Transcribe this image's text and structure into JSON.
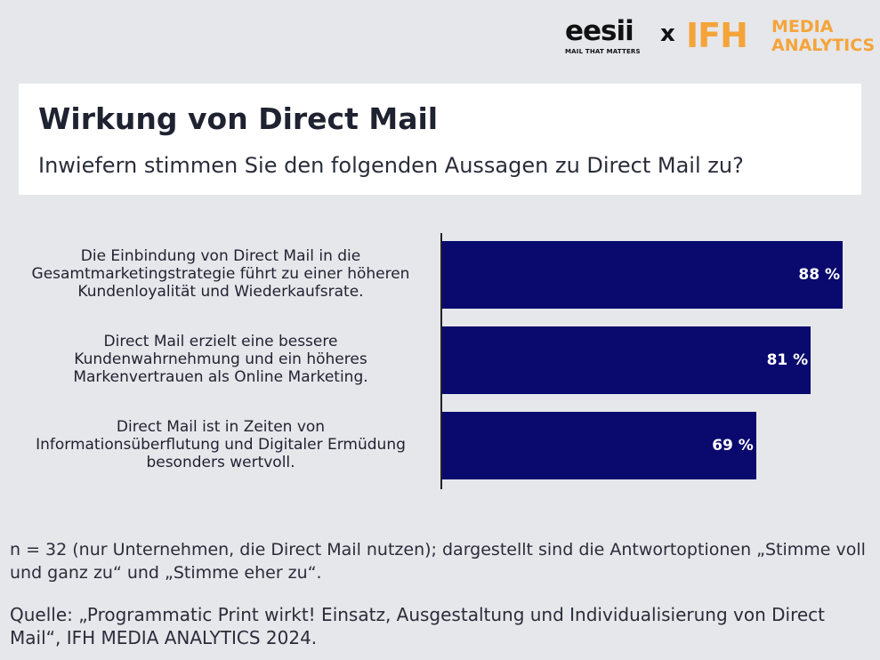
{
  "logos": {
    "eesii_word": "eesii",
    "eesii_tagline": "MAIL THAT MATTERS",
    "separator": "x",
    "ifh_word": "IFH",
    "ifh_sub_line1": "MEDIA",
    "ifh_sub_line2": "ANALYTICS",
    "brand_color": "#f5a43a"
  },
  "header": {
    "title": "Wirkung von Direct Mail",
    "subtitle": "Inwiefern stimmen Sie den folgenden Aussagen zu Direct Mail zu?"
  },
  "chart_data": {
    "type": "bar",
    "orientation": "horizontal",
    "categories": [
      "Die Einbindung von Direct Mail in die Gesamtmarketingstrategie führt zu einer höheren Kundenloyalität und Wiederkaufsrate.",
      "Direct Mail erzielt eine bessere Kundenwahrnehmung und ein höheres Markenvertrauen als Online Marketing.",
      "Direct Mail ist in Zeiten von Informationsüberflutung und Digitaler Ermüdung besonders wertvoll."
    ],
    "values": [
      88,
      81,
      69
    ],
    "value_labels": [
      "88 %",
      "81 %",
      "69 %"
    ],
    "xlim": [
      0,
      88
    ],
    "bar_color": "#0a0a6e",
    "title": "Wirkung von Direct Mail",
    "xlabel": "",
    "ylabel": ""
  },
  "notes": {
    "sample": "n = 32 (nur Unternehmen, die Direct Mail nutzen); dargestellt sind die Antwortoptionen „Stimme voll und ganz zu“ und „Stimme eher zu“.",
    "source": "Quelle: „Programmatic Print wirkt! Einsatz, Ausgestaltung und Individualisierung von Direct Mail“, IFH MEDIA ANALYTICS 2024."
  }
}
